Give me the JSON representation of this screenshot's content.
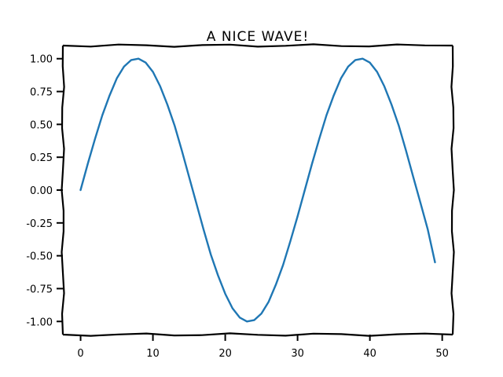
{
  "chart_data": {
    "type": "line",
    "title": "A NICE WAVE!",
    "xlabel": "",
    "ylabel": "",
    "xlim": [
      -2.45,
      51.45
    ],
    "ylim": [
      -1.1,
      1.1
    ],
    "grid": false,
    "xticks": [
      0,
      10,
      20,
      30,
      40,
      50
    ],
    "xtick_labels": [
      "0",
      "10",
      "20",
      "30",
      "40",
      "50"
    ],
    "yticks": [
      1.0,
      0.75,
      0.5,
      0.25,
      0.0,
      -0.25,
      -0.5,
      -0.75,
      -1.0
    ],
    "ytick_labels": [
      "1.00",
      "0.75",
      "0.50",
      "0.25",
      "0.00",
      "-0.25",
      "-0.50",
      "-0.75",
      "-1.00"
    ],
    "series": [
      {
        "color": "#1f77b4",
        "x": [
          0,
          1,
          2,
          3,
          4,
          5,
          6,
          7,
          8,
          9,
          10,
          11,
          12,
          13,
          14,
          15,
          16,
          17,
          18,
          19,
          20,
          21,
          22,
          23,
          24,
          25,
          26,
          27,
          28,
          29,
          30,
          31,
          32,
          33,
          34,
          35,
          36,
          37,
          38,
          39,
          40,
          41,
          42,
          43,
          44,
          45,
          46,
          47,
          48,
          49
        ],
        "y": [
          0.0,
          0.2,
          0.39,
          0.57,
          0.72,
          0.85,
          0.94,
          0.99,
          1.0,
          0.97,
          0.9,
          0.79,
          0.65,
          0.49,
          0.3,
          0.1,
          -0.1,
          -0.3,
          -0.49,
          -0.65,
          -0.79,
          -0.9,
          -0.97,
          -1.0,
          -0.99,
          -0.94,
          -0.85,
          -0.72,
          -0.57,
          -0.39,
          -0.2,
          0.0,
          0.2,
          0.39,
          0.57,
          0.72,
          0.85,
          0.94,
          0.99,
          1.0,
          0.97,
          0.9,
          0.79,
          0.65,
          0.49,
          0.3,
          0.1,
          -0.1,
          -0.3,
          -0.55
        ]
      }
    ]
  }
}
